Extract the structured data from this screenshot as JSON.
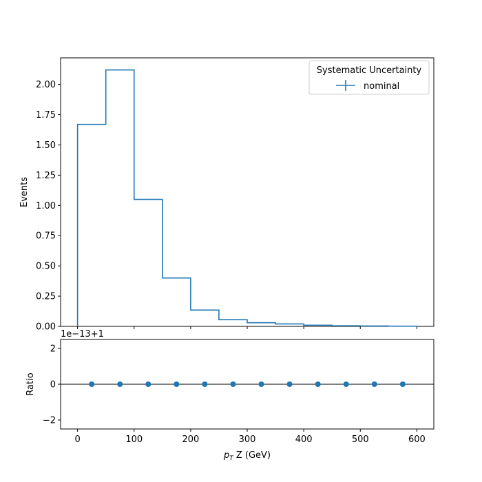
{
  "chart_data": [
    {
      "type": "line",
      "panel": "main",
      "drawstyle": "steps",
      "bin_edges": [
        0,
        50,
        100,
        150,
        200,
        250,
        300,
        350,
        400,
        450,
        500,
        550,
        600
      ],
      "series": [
        {
          "name": "nominal",
          "values": [
            1.67,
            2.12,
            1.05,
            0.4,
            0.135,
            0.055,
            0.03,
            0.02,
            0.01,
            0.005,
            0.003,
            0.002
          ],
          "color": "#1f77b4"
        }
      ],
      "ylabel": "Events",
      "xlim": [
        -30,
        630
      ],
      "ylim": [
        0,
        2.22
      ],
      "yticks": [
        "0.00",
        "0.25",
        "0.50",
        "0.75",
        "1.00",
        "1.25",
        "1.50",
        "1.75",
        "2.00"
      ],
      "ytick_values": [
        0,
        0.25,
        0.5,
        0.75,
        1.0,
        1.25,
        1.5,
        1.75,
        2.0
      ],
      "legend": {
        "title": "Systematic Uncertainty",
        "placement": "top-right",
        "entries": [
          "nominal"
        ]
      },
      "grid": false
    },
    {
      "type": "scatter",
      "panel": "ratio",
      "x": [
        25,
        75,
        125,
        175,
        225,
        275,
        325,
        375,
        425,
        475,
        525,
        575
      ],
      "y": [
        0,
        0,
        0,
        0,
        0,
        0,
        0,
        0,
        0,
        0,
        0,
        0
      ],
      "reference_line": 0,
      "color": "#1f77b4",
      "ylabel": "Ratio",
      "xlabel_prefix": "p",
      "xlabel_subscript": "T",
      "xlabel_suffix": " Z (GeV)",
      "offset_text": "1e−13+1",
      "xlim": [
        -30,
        630
      ],
      "ylim": [
        -2.5,
        2.5
      ],
      "yticks": [
        "−2",
        "0",
        "2"
      ],
      "ytick_values": [
        -2,
        0,
        2
      ],
      "xticks": [
        "0",
        "100",
        "200",
        "300",
        "400",
        "500",
        "600"
      ],
      "xtick_values": [
        0,
        100,
        200,
        300,
        400,
        500,
        600
      ],
      "grid": false
    }
  ]
}
